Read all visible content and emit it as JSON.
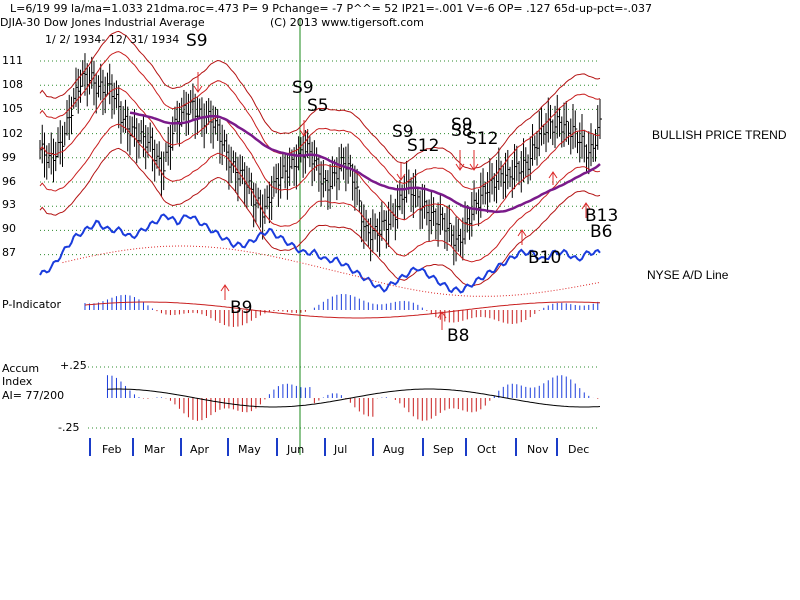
{
  "header": {
    "line1": "L=6/19  99  la/ma=1.033 21dma.roc=.473 P=  9 Pchange= -7 P^^= 52 IP21=-.001 V=-6 OP= .127 65d-up-pct=-.037",
    "title": "DJIA-30  Dow Jones Industrial Average",
    "copyright": "(C) 2013 www.tigersoft.com",
    "daterange": "1/ 2/ 1934- 12/ 31/ 1934"
  },
  "labels": {
    "bullish": "BULLISH PRICE TREND",
    "nyse": "NYSE A/D Line",
    "p_indicator": "P-Indicator",
    "accum1": "Accum",
    "accum2": "Index",
    "ai": "AI= 77/200",
    "plus": "+.25",
    "minus": "-.25"
  },
  "chart_data": {
    "type": "line",
    "title": "DJIA-30 Dow Jones Industrial Average 1934",
    "y_axis": {
      "ticks": [
        111,
        108,
        105,
        102,
        99,
        96,
        93,
        90,
        87
      ],
      "range": [
        84,
        114
      ]
    },
    "months": [
      "Feb",
      "Mar",
      "Apr",
      "May",
      "Jun",
      "Jul",
      "Aug",
      "Sep",
      "Oct",
      "Nov",
      "Dec"
    ],
    "signals": [
      {
        "label": "S9",
        "kind": "sell",
        "month": "Apr"
      },
      {
        "label": "S9",
        "kind": "sell",
        "month": "Jun"
      },
      {
        "label": "S5",
        "kind": "sell",
        "month": "Jun"
      },
      {
        "label": "B9",
        "kind": "buy",
        "month": "Apr"
      },
      {
        "label": "S9",
        "kind": "sell",
        "month": "Aug"
      },
      {
        "label": "S12",
        "kind": "sell",
        "month": "Aug"
      },
      {
        "label": "S9",
        "kind": "sell",
        "month": "Sep"
      },
      {
        "label": "S8",
        "kind": "sell",
        "month": "Sep"
      },
      {
        "label": "S12",
        "kind": "sell",
        "month": "Oct"
      },
      {
        "label": "B8",
        "kind": "buy",
        "month": "Sep"
      },
      {
        "label": "B10",
        "kind": "buy",
        "month": "Nov"
      },
      {
        "label": "B13",
        "kind": "buy",
        "month": "Dec"
      },
      {
        "label": "B6",
        "kind": "buy",
        "month": "Dec"
      }
    ],
    "price_close_approx": [
      100,
      98,
      101,
      105,
      108,
      109,
      108,
      107,
      104,
      103,
      101,
      100,
      98,
      102,
      104,
      106,
      104,
      103,
      101,
      98,
      96,
      94,
      93,
      95,
      97,
      99,
      100,
      98,
      96,
      97,
      98,
      96,
      90,
      89,
      91,
      93,
      95,
      94,
      93,
      91,
      90,
      89,
      91,
      93,
      96,
      97,
      96,
      98,
      99,
      101,
      103,
      104,
      102,
      101,
      100,
      103
    ],
    "ad_line_approx": [
      0,
      1,
      3,
      5,
      6,
      7,
      6,
      6,
      5,
      6,
      7,
      8,
      7,
      8,
      7,
      6,
      5,
      4,
      4,
      5,
      6,
      5,
      4,
      3,
      3,
      2,
      2,
      1,
      0,
      -1,
      -2,
      -1,
      0,
      1,
      0,
      -1,
      -2,
      -2,
      -1,
      0,
      1,
      2,
      3,
      3,
      2,
      3,
      3,
      2,
      3,
      3
    ]
  }
}
